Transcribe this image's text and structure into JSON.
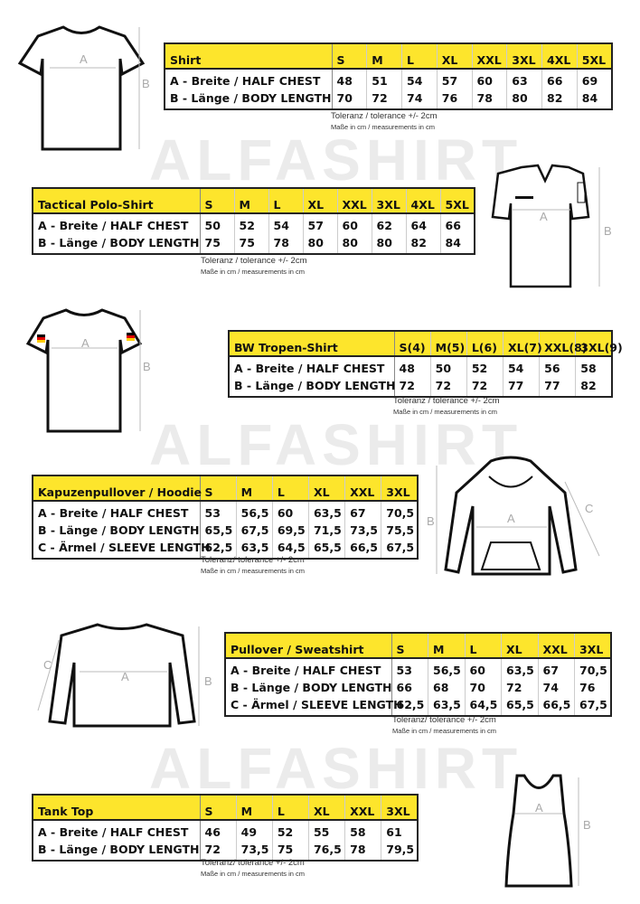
{
  "watermark": "ALFASHIRT",
  "tables": [
    {
      "id": "shirt",
      "title": "Shirt",
      "sizes": [
        "S",
        "M",
        "L",
        "XL",
        "XXL",
        "3XL",
        "4XL",
        "5XL"
      ],
      "rows": [
        {
          "label": "A -  Breite / HALF CHEST",
          "values": [
            "48",
            "51",
            "54",
            "57",
            "60",
            "63",
            "66",
            "69"
          ]
        },
        {
          "label": "B -  Länge / BODY LENGTH",
          "values": [
            "70",
            "72",
            "74",
            "76",
            "78",
            "80",
            "82",
            "84"
          ]
        }
      ],
      "tolerance": "Toleranz / tolerance +/- 2cm",
      "measure": "Maße in cm / measurements in cm"
    },
    {
      "id": "polo",
      "title": "Tactical Polo-Shirt",
      "sizes": [
        "S",
        "M",
        "L",
        "XL",
        "XXL",
        "3XL",
        "4XL",
        "5XL"
      ],
      "rows": [
        {
          "label": "A -  Breite / HALF CHEST",
          "values": [
            "50",
            "52",
            "54",
            "57",
            "60",
            "62",
            "64",
            "66"
          ]
        },
        {
          "label": "B -  Länge / BODY LENGTH",
          "values": [
            "75",
            "75",
            "78",
            "80",
            "80",
            "80",
            "82",
            "84"
          ]
        }
      ],
      "tolerance": "Toleranz / tolerance +/- 2cm",
      "measure": "Maße in cm / measurements in cm"
    },
    {
      "id": "bw",
      "title": "BW Tropen-Shirt",
      "sizes": [
        "S(4)",
        "M(5)",
        "L(6)",
        "XL(7)",
        "XXL(8)",
        "3XL(9)"
      ],
      "rows": [
        {
          "label": "A -  Breite / HALF CHEST",
          "values": [
            "48",
            "50",
            "52",
            "54",
            "56",
            "58"
          ]
        },
        {
          "label": "B -  Länge / BODY LENGTH",
          "values": [
            "72",
            "72",
            "72",
            "77",
            "77",
            "82"
          ]
        }
      ],
      "tolerance": "Toleranz / tolerance +/- 2cm",
      "measure": "Maße in cm / measurements in cm"
    },
    {
      "id": "hoodie",
      "title": "Kapuzenpullover / Hoodie",
      "sizes": [
        "S",
        "M",
        "L",
        "XL",
        "XXL",
        "3XL"
      ],
      "rows": [
        {
          "label": "A -  Breite / HALF CHEST",
          "values": [
            "53",
            "56,5",
            "60",
            "63,5",
            "67",
            "70,5"
          ]
        },
        {
          "label": "B -  Länge / BODY LENGTH",
          "values": [
            "65,5",
            "67,5",
            "69,5",
            "71,5",
            "73,5",
            "75,5"
          ]
        },
        {
          "label": "C -  Ärmel / SLEEVE LENGTH",
          "values": [
            "62,5",
            "63,5",
            "64,5",
            "65,5",
            "66,5",
            "67,5"
          ]
        }
      ],
      "tolerance": "Toleranz/ tolerance +/- 2cm",
      "measure": "Maße in cm / measurements in cm"
    },
    {
      "id": "pullover",
      "title": "Pullover / Sweatshirt",
      "sizes": [
        "S",
        "M",
        "L",
        "XL",
        "XXL",
        "3XL"
      ],
      "rows": [
        {
          "label": "A -  Breite / HALF CHEST",
          "values": [
            "53",
            "56,5",
            "60",
            "63,5",
            "67",
            "70,5"
          ]
        },
        {
          "label": "B -  Länge / BODY LENGTH",
          "values": [
            "66",
            "68",
            "70",
            "72",
            "74",
            "76"
          ]
        },
        {
          "label": "C -  Ärmel / SLEEVE LENGTH",
          "values": [
            "62,5",
            "63,5",
            "64,5",
            "65,5",
            "66,5",
            "67,5"
          ]
        }
      ],
      "tolerance": "Toleranz/ tolerance +/- 2cm",
      "measure": "Maße in cm / measurements in cm"
    },
    {
      "id": "tank",
      "title": "Tank Top",
      "sizes": [
        "S",
        "M",
        "L",
        "XL",
        "XXL",
        "3XL"
      ],
      "rows": [
        {
          "label": "A -  Breite / HALF CHEST",
          "values": [
            "46",
            "49",
            "52",
            "55",
            "58",
            "61"
          ]
        },
        {
          "label": "B -  Länge / BODY LENGTH",
          "values": [
            "72",
            "73,5",
            "75",
            "76,5",
            "78",
            "79,5"
          ]
        }
      ],
      "tolerance": "Toleranz/ tolerance +/- 2cm",
      "measure": "Maße in cm / measurements in cm"
    }
  ],
  "labels": {
    "a": "A",
    "b": "B",
    "c": "C"
  },
  "colors": {
    "header": "#fde52c",
    "border": "#222222"
  }
}
